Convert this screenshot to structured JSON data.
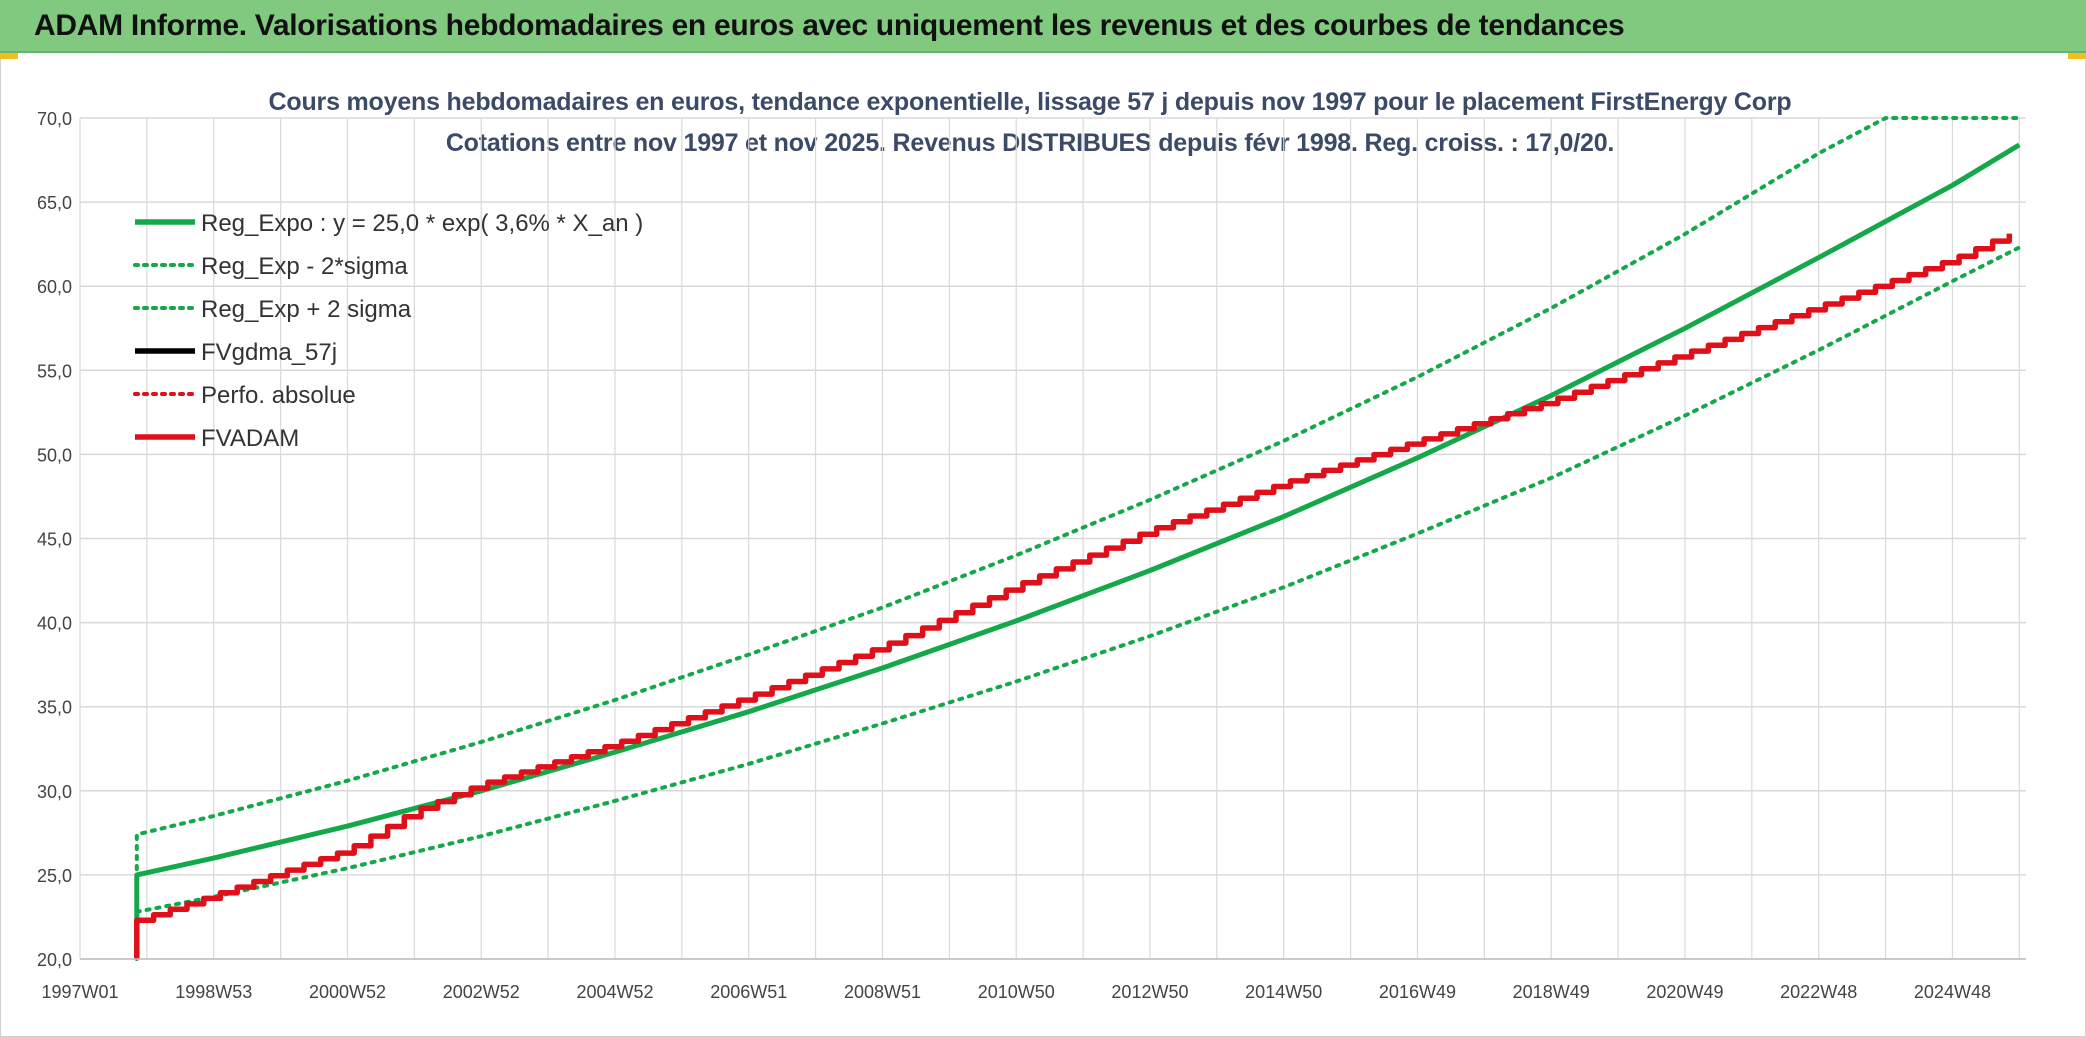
{
  "banner": {
    "title": "ADAM Informe. Valorisations hebdomadaires en euros avec uniquement les revenus et des courbes de tendances"
  },
  "colors": {
    "banner": "#80c97f",
    "reg_green": "#14a84a",
    "fv_red": "#e0101a",
    "grid": "#d9d9d9",
    "title_text": "#3b4a66"
  },
  "chart_data": {
    "type": "line",
    "title": "Cours moyens hebdomadaires en euros, tendance exponentielle, lissage 57 j depuis nov 1997 pour le placement FirstEnergy Corp",
    "subtitle": "Cotations entre nov 1997 et nov 2025. Revenus DISTRIBUES depuis févr 1998. Reg. croiss. : 17,0/20.",
    "xlabel": "",
    "ylabel": "",
    "x_range": [
      1997.0,
      2026.1
    ],
    "ylim": [
      20,
      70
    ],
    "grid": true,
    "legend_position": "top-left",
    "y_ticks": [
      "20,0",
      "25,0",
      "30,0",
      "35,0",
      "40,0",
      "45,0",
      "50,0",
      "55,0",
      "60,0",
      "65,0",
      "70,0"
    ],
    "y_tick_values": [
      20,
      25,
      30,
      35,
      40,
      45,
      50,
      55,
      60,
      65,
      70
    ],
    "x_ticks": [
      {
        "label": "1997W01",
        "x": 1997.0
      },
      {
        "label": "1998W53",
        "x": 1999.0
      },
      {
        "label": "2000W52",
        "x": 2001.0
      },
      {
        "label": "2002W52",
        "x": 2003.0
      },
      {
        "label": "2004W52",
        "x": 2005.0
      },
      {
        "label": "2006W51",
        "x": 2007.0
      },
      {
        "label": "2008W51",
        "x": 2009.0
      },
      {
        "label": "2010W50",
        "x": 2011.0
      },
      {
        "label": "2012W50",
        "x": 2013.0
      },
      {
        "label": "2014W50",
        "x": 2015.0
      },
      {
        "label": "2016W49",
        "x": 2017.0
      },
      {
        "label": "2018W49",
        "x": 2019.0
      },
      {
        "label": "2020W49",
        "x": 2021.0
      },
      {
        "label": "2022W48",
        "x": 2023.0
      },
      {
        "label": "2024W48",
        "x": 2025.0
      }
    ],
    "series": [
      {
        "name": "Reg_Expo : y = 25,0 * exp( 3,6% *  X_an )",
        "style": "solid",
        "color": "#14a84a",
        "x": [
          1997.85,
          1997.85,
          1999,
          2001,
          2003,
          2005,
          2007,
          2009,
          2011,
          2013,
          2015,
          2017,
          2019,
          2021,
          2023,
          2025,
          2026.0
        ],
        "y": [
          20.0,
          25.0,
          26.0,
          27.9,
          30.0,
          32.3,
          34.7,
          37.3,
          40.1,
          43.1,
          46.3,
          49.8,
          53.5,
          57.5,
          61.7,
          66.0,
          68.4
        ]
      },
      {
        "name": "Reg_Exp - 2*sigma",
        "style": "dotted",
        "color": "#14a84a",
        "x": [
          1997.85,
          1999,
          2001,
          2003,
          2005,
          2007,
          2009,
          2011,
          2013,
          2015,
          2017,
          2019,
          2021,
          2023,
          2025,
          2026.0
        ],
        "y": [
          22.8,
          23.7,
          25.4,
          27.3,
          29.4,
          31.6,
          34.0,
          36.5,
          39.2,
          42.1,
          45.3,
          48.6,
          52.3,
          56.2,
          60.3,
          62.3
        ]
      },
      {
        "name": "Reg_Exp + 2 sigma",
        "style": "dotted",
        "color": "#14a84a",
        "x": [
          1997.85,
          1997.85,
          1999,
          2001,
          2003,
          2005,
          2007,
          2009,
          2011,
          2013,
          2015,
          2017,
          2019,
          2021,
          2023,
          2024.0,
          2026.0
        ],
        "y": [
          20.0,
          27.4,
          28.5,
          30.6,
          32.9,
          35.4,
          38.1,
          40.9,
          44.0,
          47.3,
          50.8,
          54.6,
          58.7,
          63.1,
          67.9,
          70.0,
          70.0
        ]
      },
      {
        "name": "FVgdma_57j",
        "style": "solid",
        "color": "#000000",
        "x": [],
        "y": []
      },
      {
        "name": "Perfo. absolue",
        "style": "dotted",
        "color": "#e0101a",
        "x": [],
        "y": []
      },
      {
        "name": "FVADAM",
        "style": "solid",
        "color": "#e0101a",
        "stepped": true,
        "x": [
          1997.85,
          1997.85,
          1999,
          2001,
          2002,
          2003,
          2005,
          2007,
          2009,
          2011,
          2013,
          2015,
          2017,
          2019,
          2021,
          2023,
          2025,
          2026.0
        ],
        "y": [
          20.0,
          22.3,
          23.8,
          26.5,
          28.8,
          30.4,
          32.8,
          35.6,
          38.6,
          42.2,
          45.5,
          48.3,
          50.8,
          53.2,
          56.0,
          58.8,
          61.6,
          63.4
        ]
      }
    ]
  }
}
